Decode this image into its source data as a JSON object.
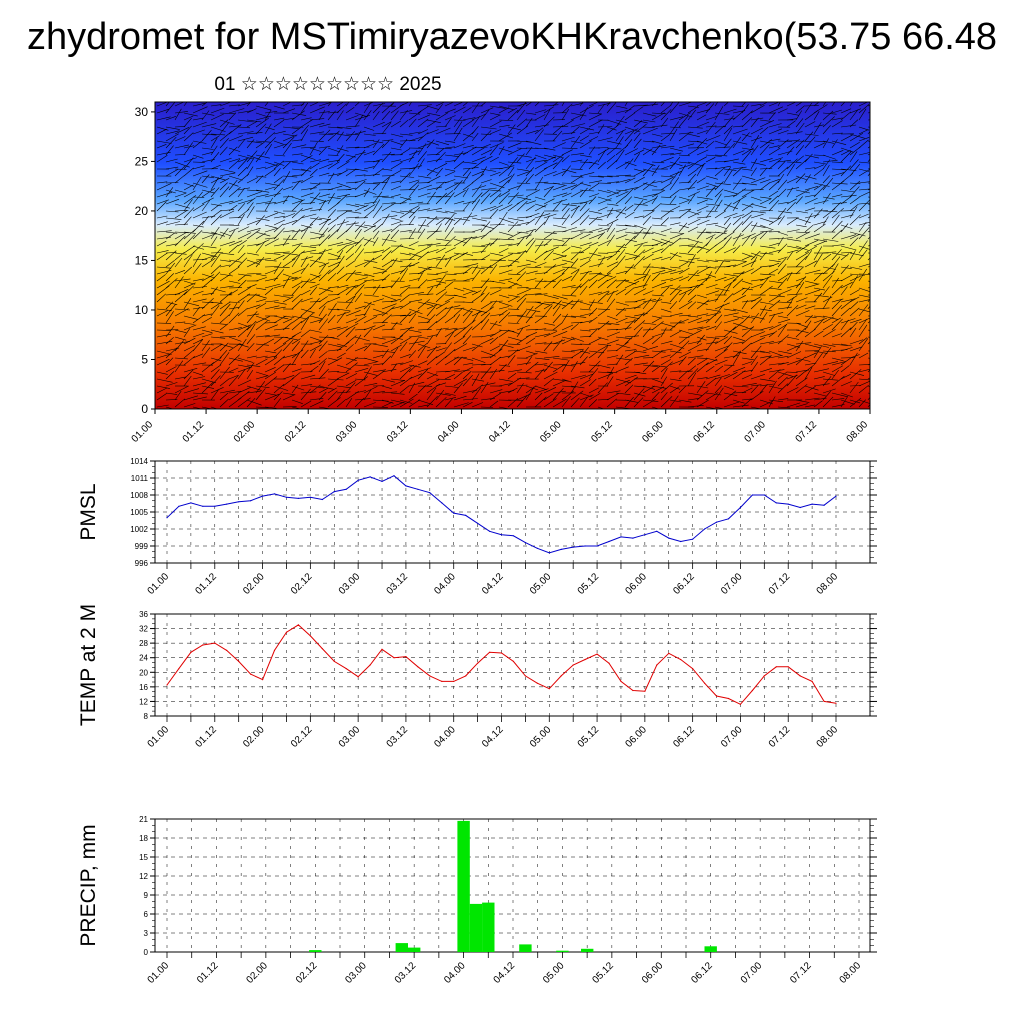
{
  "title": "zhydromet for MSTimiryazevoKHKravchenko(53.75 66.48",
  "subtitle": "01 ☆☆☆☆☆☆☆☆☆ 2025",
  "x_ticks": [
    "01.00",
    "01.12",
    "02.00",
    "02.12",
    "03.00",
    "03.12",
    "04.00",
    "04.12",
    "05.00",
    "05.12",
    "06.00",
    "06.12",
    "07.00",
    "07.12",
    "08.00"
  ],
  "chart_data": [
    {
      "type": "heatmap",
      "title": "",
      "ylabel": "",
      "ylim": [
        0,
        31
      ],
      "yticks": [
        0,
        5,
        10,
        15,
        20,
        25,
        30
      ],
      "colormap": [
        "#c40000",
        "#e83000",
        "#f77d00",
        "#fbb400",
        "#f5ec4a",
        "#d8ecff",
        "#5aa6ff",
        "#1f4fff",
        "#2a1ecc"
      ],
      "overlay": "wind vectors"
    },
    {
      "type": "line",
      "ylabel": "PMSL",
      "ylim": [
        996,
        1014
      ],
      "yticks": [
        996,
        999,
        1002,
        1005,
        1008,
        1011,
        1014
      ],
      "color": "#0000cc",
      "x": [
        0,
        3,
        6,
        9,
        12,
        15,
        18,
        21,
        24,
        27,
        30,
        33,
        36,
        39,
        42,
        45,
        48,
        51,
        54,
        57,
        60,
        63,
        66,
        69,
        72,
        75,
        78,
        81,
        84,
        87,
        90,
        93,
        96,
        99,
        102,
        105,
        108,
        111,
        114,
        117,
        120,
        123,
        126,
        129,
        132,
        135,
        138,
        141,
        144,
        147,
        150,
        153,
        156,
        159,
        162,
        165,
        168
      ],
      "values": [
        1004,
        1006,
        1006.6,
        1006,
        1006,
        1006.4,
        1006.8,
        1007,
        1007.8,
        1008.2,
        1007.6,
        1007.4,
        1007.6,
        1007.2,
        1008.6,
        1009,
        1010.6,
        1011.2,
        1010.4,
        1011.4,
        1009.6,
        1009,
        1008.4,
        1006.6,
        1004.8,
        1004.4,
        1003,
        1001.6,
        1001,
        1000.8,
        999.6,
        998.6,
        997.8,
        998.4,
        998.8,
        999,
        999,
        999.8,
        1000.6,
        1000.4,
        1001,
        1001.6,
        1000.4,
        999.8,
        1000.2,
        1002,
        1003.2,
        1003.8,
        1005.8,
        1008,
        1008,
        1006.6,
        1006.4,
        1005.8,
        1006.4,
        1006.2,
        1007.8
      ]
    },
    {
      "type": "line",
      "ylabel": "TEMP at 2 M",
      "ylim": [
        8,
        36
      ],
      "yticks": [
        8,
        12,
        16,
        20,
        24,
        28,
        32,
        36
      ],
      "color": "#e00000",
      "x": [
        0,
        3,
        6,
        9,
        12,
        15,
        18,
        21,
        24,
        27,
        30,
        33,
        36,
        39,
        42,
        45,
        48,
        51,
        54,
        57,
        60,
        63,
        66,
        69,
        72,
        75,
        78,
        81,
        84,
        87,
        90,
        93,
        96,
        99,
        102,
        105,
        108,
        111,
        114,
        117,
        120,
        123,
        126,
        129,
        132,
        135,
        138,
        141,
        144,
        147,
        150,
        153,
        156,
        159,
        162,
        165,
        168
      ],
      "values": [
        16.5,
        21,
        25.5,
        27.5,
        28,
        26,
        23,
        19.5,
        18,
        26,
        31,
        33,
        30,
        26.5,
        23,
        21,
        18.8,
        22,
        26.3,
        24,
        24.3,
        21.5,
        19,
        17.5,
        17.5,
        19,
        22.5,
        25.5,
        25.3,
        23,
        19,
        17,
        15.5,
        19,
        22,
        23.5,
        25,
        22.5,
        17.5,
        15,
        14.8,
        22,
        25.2,
        23.5,
        21,
        17,
        13.5,
        12.8,
        11.2,
        15,
        19,
        21.5,
        21.5,
        19,
        17.5,
        12,
        11.5
      ]
    },
    {
      "type": "bar",
      "ylabel": "PRECIP, mm",
      "ylim": [
        0,
        21
      ],
      "yticks": [
        0,
        3,
        6,
        9,
        12,
        15,
        18,
        21
      ],
      "color": "#00e600",
      "x": [
        36,
        57,
        60,
        72,
        75,
        78,
        87,
        96,
        102,
        132
      ],
      "values": [
        0.3,
        1.4,
        0.7,
        20.7,
        7.6,
        7.8,
        1.2,
        0.2,
        0.5,
        0.9
      ]
    }
  ]
}
